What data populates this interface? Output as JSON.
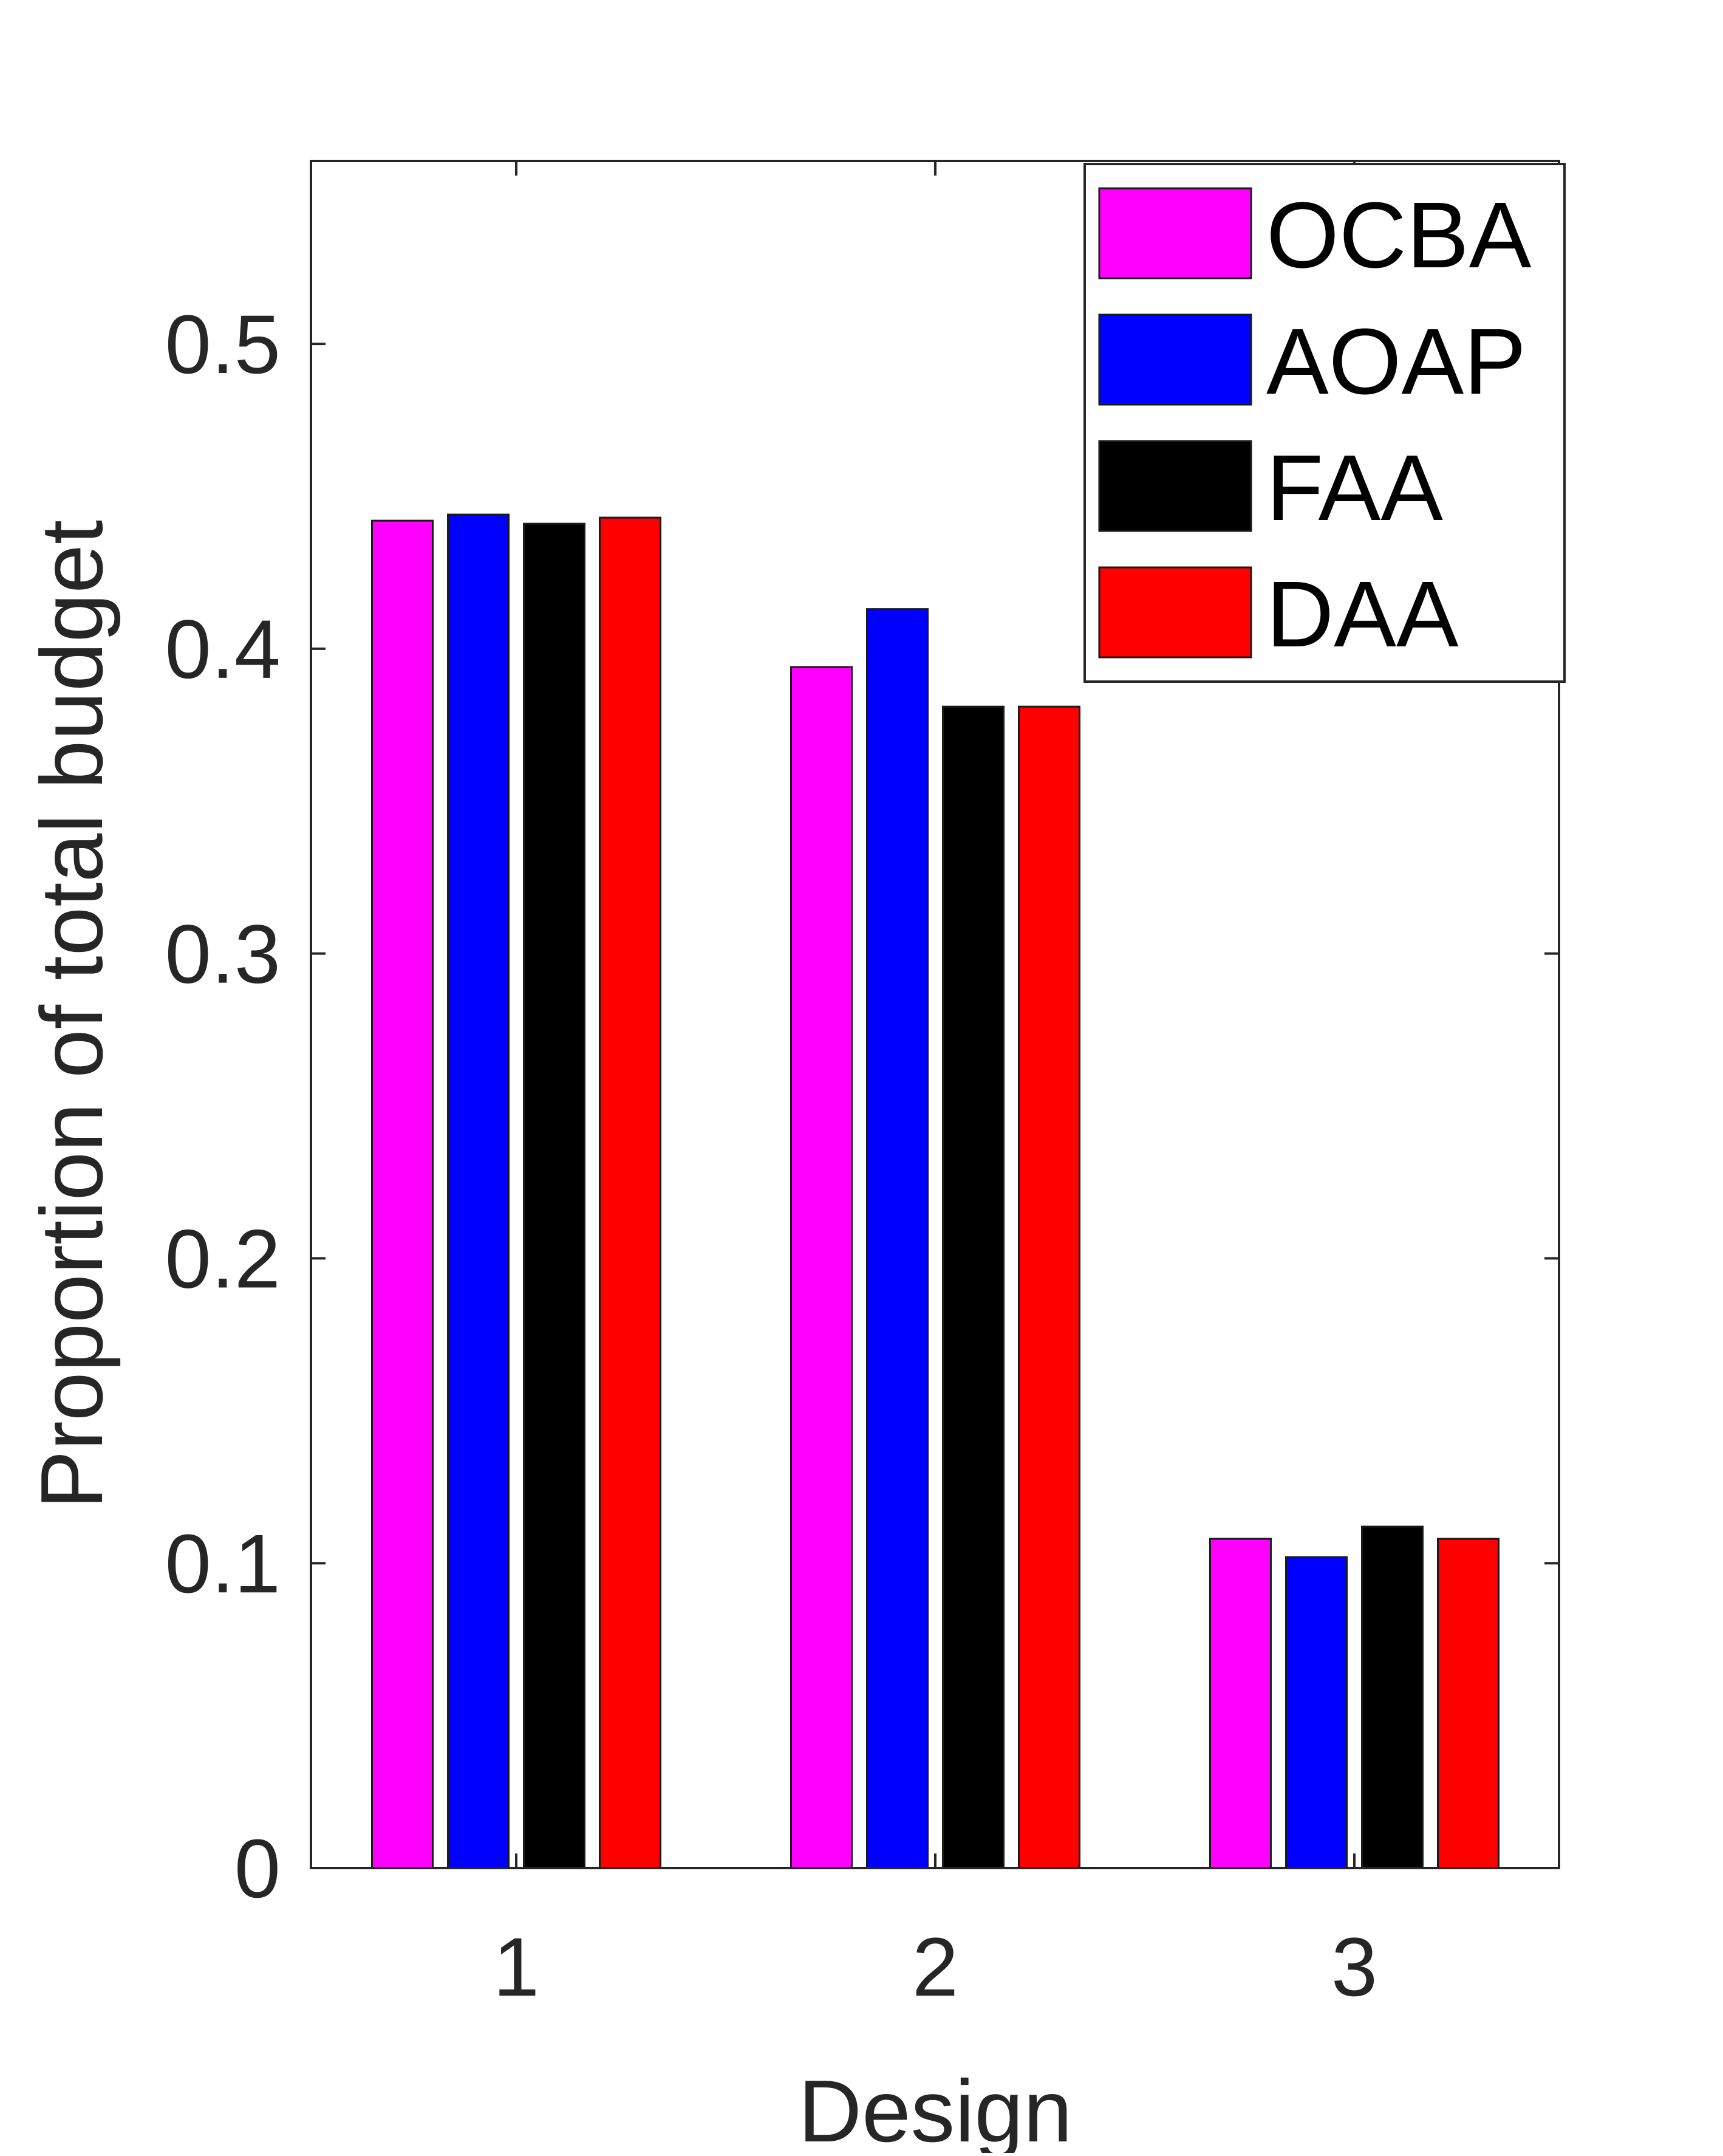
{
  "chart_data": {
    "type": "bar",
    "title": "",
    "xlabel": "Design",
    "ylabel": "Proportion of total budget",
    "categories": [
      "1",
      "2",
      "3"
    ],
    "ylim": [
      0,
      0.56
    ],
    "yticks": [
      0,
      0.1,
      0.2,
      0.3,
      0.4,
      0.5
    ],
    "ytick_labels": [
      "0",
      "0.1",
      "0.2",
      "0.3",
      "0.4",
      "0.5"
    ],
    "grid": false,
    "legend_position": "top-right",
    "series": [
      {
        "name": "OCBA",
        "color": "#ff00ff",
        "values": [
          0.442,
          0.394,
          0.108
        ]
      },
      {
        "name": "AOAP",
        "color": "#0000ff",
        "values": [
          0.444,
          0.413,
          0.102
        ]
      },
      {
        "name": "FAA",
        "color": "#000000",
        "values": [
          0.441,
          0.381,
          0.112
        ]
      },
      {
        "name": "DAA",
        "color": "#ff0000",
        "values": [
          0.443,
          0.381,
          0.108
        ]
      }
    ]
  }
}
